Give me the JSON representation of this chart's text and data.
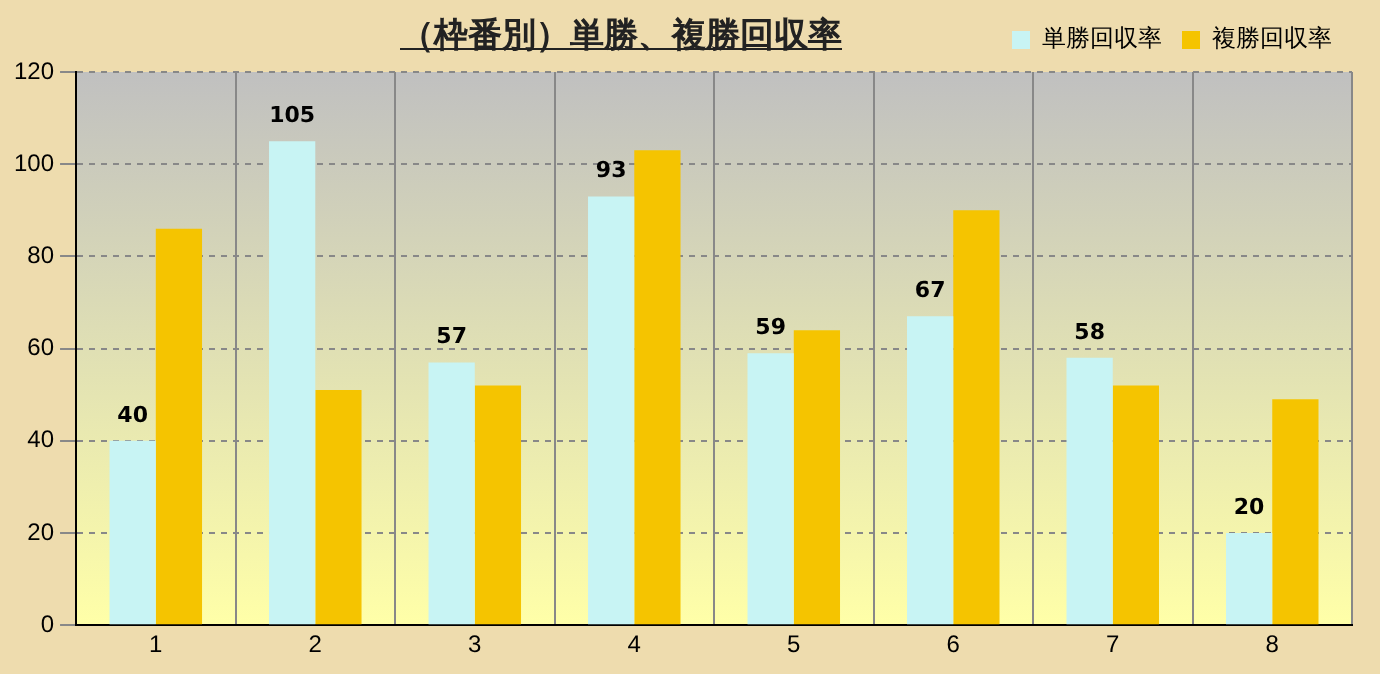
{
  "chart_data": {
    "type": "bar",
    "title": "（枠番別）単勝、複勝回収率",
    "categories": [
      "1",
      "2",
      "3",
      "4",
      "5",
      "6",
      "7",
      "8"
    ],
    "series": [
      {
        "name": "単勝回収率",
        "color": "#c8f4f4",
        "values": [
          40,
          105,
          57,
          93,
          59,
          67,
          58,
          20
        ],
        "value_labels": [
          "40",
          "105",
          "57",
          "93",
          "59",
          "67",
          "58",
          "20"
        ]
      },
      {
        "name": "複勝回収率",
        "color": "#f5c400",
        "values": [
          86,
          51,
          52,
          103,
          64,
          90,
          52,
          49
        ]
      }
    ],
    "ylim": [
      0,
      120
    ],
    "yticks": [
      0,
      20,
      40,
      60,
      80,
      100,
      120
    ],
    "grid": true,
    "legend": "top right"
  }
}
